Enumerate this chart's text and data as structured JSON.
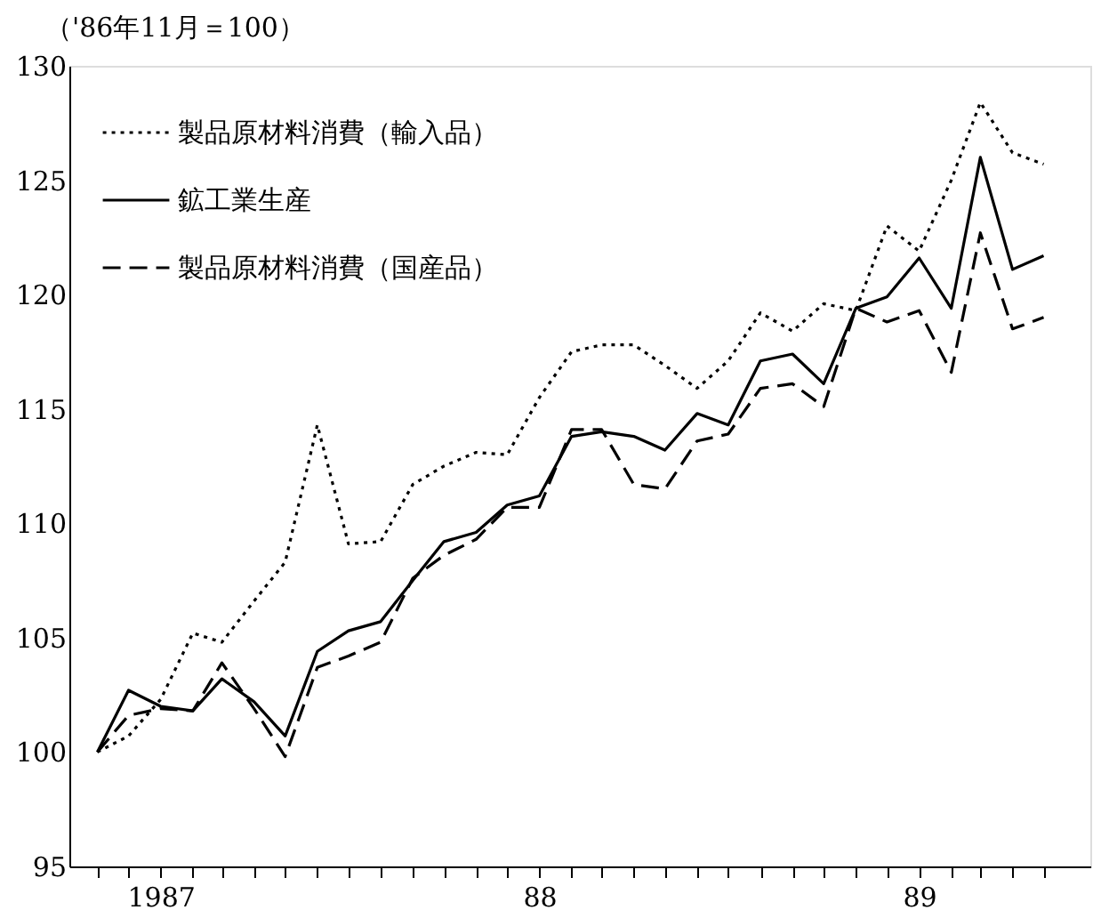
{
  "chart_data": {
    "type": "line",
    "ylabel": "（'86年11月＝100）",
    "x": [
      "1986-11",
      "1986-12",
      "1987-01",
      "1987-02",
      "1987-03",
      "1987-04",
      "1987-05",
      "1987-06",
      "1987-07",
      "1987-08",
      "1987-09",
      "1987-10",
      "1987-11",
      "1987-12",
      "1988-01",
      "1988-02",
      "1988-03",
      "1988-04",
      "1988-05",
      "1988-06",
      "1988-07",
      "1988-08",
      "1988-09",
      "1988-10",
      "1988-11",
      "1988-12",
      "1989-01",
      "1989-02",
      "1989-03",
      "1989-04",
      "1989-05"
    ],
    "series": [
      {
        "name": "製品原材料消費（輸入品）",
        "color": "#000000",
        "line_style": "dotted",
        "values": [
          100,
          100.7,
          102.3,
          105.2,
          104.8,
          106.6,
          108.3,
          114.3,
          109.1,
          109.2,
          111.7,
          112.5,
          113.1,
          113.0,
          115.5,
          117.5,
          117.8,
          117.8,
          116.9,
          115.9,
          117.1,
          119.2,
          118.4,
          119.6,
          119.3,
          123.0,
          121.9,
          125.0,
          128.4,
          126.2,
          125.7
        ]
      },
      {
        "name": "鉱工業生産",
        "color": "#000000",
        "line_style": "solid",
        "values": [
          100,
          102.7,
          102.0,
          101.8,
          103.2,
          102.2,
          100.7,
          104.4,
          105.3,
          105.7,
          107.5,
          109.2,
          109.6,
          110.8,
          111.2,
          113.8,
          114.0,
          113.8,
          113.2,
          114.8,
          114.3,
          117.1,
          117.4,
          116.1,
          119.4,
          119.9,
          121.6,
          119.4,
          126.0,
          121.1,
          121.7
        ]
      },
      {
        "name": "製品原材料消費（国産品）",
        "color": "#000000",
        "line_style": "dashed",
        "values": [
          100,
          101.6,
          101.9,
          101.8,
          103.9,
          101.9,
          99.8,
          103.7,
          104.2,
          104.8,
          107.6,
          108.6,
          109.3,
          110.7,
          110.7,
          114.1,
          114.1,
          111.7,
          111.5,
          113.6,
          113.9,
          115.9,
          116.1,
          115.1,
          119.4,
          118.8,
          119.3,
          116.6,
          122.7,
          118.5,
          119.0
        ]
      }
    ],
    "ylim": [
      95,
      130
    ],
    "yticks": [
      95,
      100,
      105,
      110,
      115,
      120,
      125,
      130
    ],
    "xlim": [
      "1986-10-05",
      "1989-06-15"
    ],
    "xticks": [
      {
        "value": "1986-11",
        "label": null
      },
      {
        "value": "1986-12",
        "label": null
      },
      {
        "value": "1987-01",
        "label": "1987"
      },
      {
        "value": "1987-02",
        "label": null
      },
      {
        "value": "1987-03",
        "label": null
      },
      {
        "value": "1987-04",
        "label": null
      },
      {
        "value": "1987-05",
        "label": null
      },
      {
        "value": "1987-06",
        "label": null
      },
      {
        "value": "1987-07",
        "label": null
      },
      {
        "value": "1987-08",
        "label": null
      },
      {
        "value": "1987-09",
        "label": null
      },
      {
        "value": "1987-10",
        "label": null
      },
      {
        "value": "1987-11",
        "label": null
      },
      {
        "value": "1987-12",
        "label": null
      },
      {
        "value": "1988-01",
        "label": "88"
      },
      {
        "value": "1988-02",
        "label": null
      },
      {
        "value": "1988-03",
        "label": null
      },
      {
        "value": "1988-04",
        "label": null
      },
      {
        "value": "1988-05",
        "label": null
      },
      {
        "value": "1988-06",
        "label": null
      },
      {
        "value": "1988-07",
        "label": null
      },
      {
        "value": "1988-08",
        "label": null
      },
      {
        "value": "1988-09",
        "label": null
      },
      {
        "value": "1988-10",
        "label": null
      },
      {
        "value": "1988-11",
        "label": null
      },
      {
        "value": "1988-12",
        "label": null
      },
      {
        "value": "1989-01",
        "label": "89"
      },
      {
        "value": "1989-02",
        "label": null
      },
      {
        "value": "1989-03",
        "label": null
      },
      {
        "value": "1989-04",
        "label": null
      },
      {
        "value": "1989-05",
        "label": null
      }
    ],
    "legend": "top left",
    "grid": false,
    "marker": "none"
  }
}
